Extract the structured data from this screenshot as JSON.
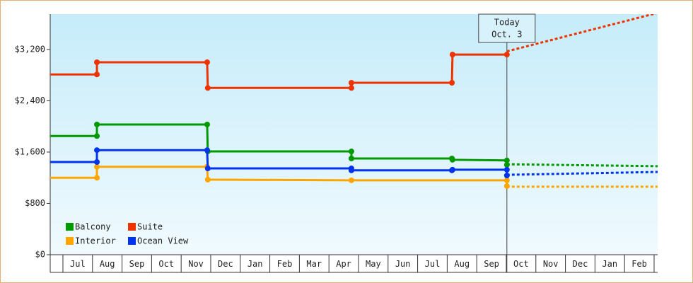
{
  "chart_data": {
    "type": "line",
    "xlim": [
      -0.43,
      20.12
    ],
    "xticks": [
      {
        "value": 0.5,
        "label": "Jul"
      },
      {
        "value": 1.5,
        "label": "Aug"
      },
      {
        "value": 2.5,
        "label": "Sep"
      },
      {
        "value": 3.5,
        "label": "Oct"
      },
      {
        "value": 4.5,
        "label": "Nov"
      },
      {
        "value": 5.5,
        "label": "Dec"
      },
      {
        "value": 6.5,
        "label": "Jan"
      },
      {
        "value": 7.5,
        "label": "Feb"
      },
      {
        "value": 8.5,
        "label": "Mar"
      },
      {
        "value": 9.5,
        "label": "Apr"
      },
      {
        "value": 10.5,
        "label": "May"
      },
      {
        "value": 11.5,
        "label": "Jun"
      },
      {
        "value": 12.5,
        "label": "Jul"
      },
      {
        "value": 13.5,
        "label": "Aug"
      },
      {
        "value": 14.5,
        "label": "Sep"
      },
      {
        "value": 15.5,
        "label": "Oct"
      },
      {
        "value": 16.5,
        "label": "Nov"
      },
      {
        "value": 17.5,
        "label": "Dec"
      },
      {
        "value": 18.5,
        "label": "Jan"
      },
      {
        "value": 19.5,
        "label": "Feb"
      }
    ],
    "ylim": [
      0,
      3750
    ],
    "yticks": [
      {
        "value": 0,
        "label": "$0"
      },
      {
        "value": 800,
        "label": "$800"
      },
      {
        "value": 1600,
        "label": "$1,600"
      },
      {
        "value": 2400,
        "label": "$2,400"
      },
      {
        "value": 3200,
        "label": "$3,200"
      }
    ],
    "today": {
      "x": 15.02,
      "label": [
        "Today",
        "Oct. 3"
      ]
    },
    "series": [
      {
        "name": "Balcony",
        "color": "#009a00",
        "x": [
          -0.43,
          1.15,
          1.15,
          4.88,
          4.9,
          9.76,
          9.76,
          13.16,
          13.18,
          15.02,
          15.02
        ],
        "values": [
          1850,
          1850,
          2030,
          2030,
          1610,
          1610,
          1500,
          1500,
          1480,
          1470,
          1400
        ],
        "projection": {
          "x": [
            15.02,
            20.12
          ],
          "values": [
            1410,
            1380
          ]
        }
      },
      {
        "name": "Suite",
        "color": "#ee3300",
        "x": [
          -0.43,
          1.15,
          1.15,
          4.88,
          4.9,
          9.76,
          9.76,
          13.16,
          13.18,
          15.02
        ],
        "values": [
          2810,
          2810,
          3000,
          3000,
          2600,
          2600,
          2680,
          2680,
          3120,
          3120
        ],
        "projection": {
          "x": [
            15.02,
            20.12
          ],
          "values": [
            3170,
            3770
          ]
        }
      },
      {
        "name": "Interior",
        "color": "#ffa500",
        "x": [
          -0.43,
          1.15,
          1.15,
          4.88,
          4.9,
          9.76,
          15.02,
          15.02
        ],
        "values": [
          1200,
          1200,
          1370,
          1370,
          1170,
          1160,
          1160,
          1070
        ],
        "projection": {
          "x": [
            15.02,
            20.12
          ],
          "values": [
            1060,
            1060
          ]
        }
      },
      {
        "name": "Ocean View",
        "color": "#0033ee",
        "x": [
          -0.43,
          1.15,
          1.15,
          4.88,
          4.9,
          9.76,
          9.76,
          13.16,
          13.18,
          15.02,
          15.02
        ],
        "values": [
          1445,
          1445,
          1630,
          1630,
          1345,
          1345,
          1315,
          1315,
          1325,
          1325,
          1235
        ],
        "projection": {
          "x": [
            15.02,
            20.12
          ],
          "values": [
            1245,
            1290
          ]
        }
      }
    ]
  }
}
